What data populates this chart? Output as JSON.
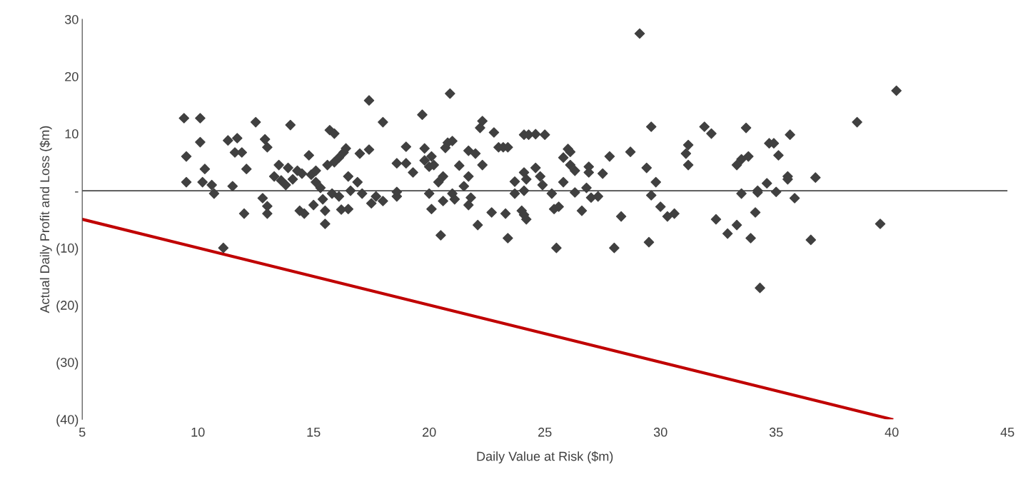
{
  "chart_data": {
    "type": "scatter",
    "xlabel": "Daily Value at Risk ($m)",
    "ylabel": "Actual Daily Profit and Loss ($m)",
    "xlim": [
      5,
      45
    ],
    "xticks": [
      5,
      10,
      15,
      20,
      25,
      30,
      35,
      40,
      45
    ],
    "ylim": [
      -40,
      30
    ],
    "yticks": [
      {
        "value": -40,
        "label": "(40)"
      },
      {
        "value": -30,
        "label": "(30)"
      },
      {
        "value": -20,
        "label": "(20)"
      },
      {
        "value": -10,
        "label": "(10)"
      },
      {
        "value": 0,
        "label": "-"
      },
      {
        "value": 10,
        "label": "10"
      },
      {
        "value": 20,
        "label": "20"
      },
      {
        "value": 30,
        "label": "30"
      }
    ],
    "grid": false,
    "marker": "diamond",
    "ref_lines": [
      {
        "axis": "y",
        "value": 0,
        "color": "#000000",
        "line_style": "solid"
      }
    ],
    "series": [
      {
        "color": "#404040",
        "x": [
          9.4,
          10.1,
          9.5,
          10.1,
          10.3,
          9.5,
          10.2,
          10.6,
          10.7,
          11.1,
          11.3,
          11.7,
          11.6,
          11.5,
          11.9,
          12.1,
          12.0,
          12.5,
          12.9,
          13.0,
          12.8,
          13.0,
          13.0,
          13.3,
          13.5,
          13.6,
          13.9,
          14.0,
          14.1,
          13.8,
          14.3,
          14.5,
          14.6,
          14.4,
          14.8,
          14.9,
          15.1,
          15.1,
          15.0,
          15.3,
          15.4,
          15.5,
          15.5,
          15.7,
          15.9,
          15.6,
          15.9,
          16.1,
          16.3,
          16.4,
          15.8,
          16.1,
          16.2,
          16.5,
          16.5,
          16.6,
          16.9,
          17.1,
          17.0,
          17.4,
          17.4,
          17.5,
          17.7,
          18.0,
          18.0,
          18.6,
          18.6,
          18.6,
          19.0,
          19.0,
          19.3,
          19.7,
          19.8,
          19.8,
          20.0,
          20.0,
          20.9,
          20.1,
          20.1,
          20.2,
          20.4,
          20.6,
          20.5,
          20.6,
          20.7,
          20.8,
          21.0,
          21.0,
          21.1,
          21.3,
          21.5,
          21.7,
          21.7,
          21.7,
          21.8,
          22.0,
          22.1,
          22.2,
          22.3,
          22.3,
          22.7,
          22.8,
          23.0,
          23.2,
          23.4,
          23.3,
          23.4,
          23.7,
          23.7,
          24.0,
          24.1,
          24.1,
          24.1,
          24.2,
          24.1,
          24.3,
          24.6,
          25.0,
          24.2,
          24.6,
          24.8,
          24.9,
          25.4,
          25.3,
          25.8,
          25.5,
          26.0,
          26.1,
          25.6,
          25.8,
          26.1,
          26.3,
          26.3,
          26.6,
          26.8,
          26.9,
          26.9,
          27.0,
          27.3,
          27.5,
          27.8,
          28.0,
          28.3,
          28.7,
          29.1,
          29.4,
          29.5,
          29.6,
          29.6,
          29.8,
          30.0,
          30.3,
          30.6,
          31.1,
          31.2,
          31.2,
          31.9,
          32.2,
          32.4,
          32.9,
          33.3,
          33.3,
          33.5,
          33.8,
          33.5,
          33.7,
          33.9,
          34.1,
          34.2,
          34.2,
          34.3,
          34.6,
          34.7,
          34.9,
          35.0,
          35.1,
          35.5,
          35.5,
          35.6,
          35.8,
          36.7,
          36.5,
          38.5,
          39.5,
          40.2
        ],
        "values": [
          12.7,
          12.7,
          6,
          8.5,
          3.8,
          1.5,
          1.5,
          1,
          -0.5,
          -10,
          8.8,
          9.2,
          6.7,
          0.8,
          6.7,
          3.8,
          -4,
          12,
          9,
          7.6,
          -1.3,
          -2.7,
          -4,
          2.5,
          4.5,
          1.8,
          4,
          11.5,
          2,
          1,
          3.5,
          3,
          -4,
          -3.5,
          6.2,
          2.8,
          3.5,
          1.5,
          -2.5,
          0.5,
          -1.5,
          -5.8,
          -3.5,
          10.6,
          10,
          4.5,
          5,
          5.8,
          6.7,
          7.4,
          -0.5,
          -1,
          -3.3,
          -3.2,
          2.5,
          0,
          1.5,
          -0.5,
          6.5,
          7.2,
          15.8,
          -2.2,
          -1,
          12,
          -1.8,
          4.8,
          -1,
          -0.2,
          4.8,
          7.7,
          3.2,
          13.3,
          5.3,
          7.4,
          4.2,
          -0.5,
          17,
          6,
          -3.2,
          4.5,
          1.5,
          -1.8,
          -7.8,
          2.5,
          7.5,
          8.4,
          8.7,
          -0.5,
          -1.5,
          4.4,
          0.8,
          2.5,
          -2.5,
          7,
          -1.2,
          6.5,
          -6,
          11,
          12.2,
          4.5,
          -3.8,
          10.2,
          7.6,
          7.6,
          7.6,
          -4,
          -8.3,
          -0.5,
          1.6,
          -3.5,
          3.2,
          0,
          -4.2,
          -5,
          9.8,
          9.8,
          9.9,
          9.8,
          2,
          4,
          2.5,
          1,
          -3.2,
          -0.5,
          5.8,
          -10,
          7.3,
          4.5,
          -2.8,
          1.5,
          6.8,
          3.5,
          -0.3,
          -3.5,
          0.5,
          3.2,
          4.2,
          -1.2,
          -1,
          3,
          6,
          -10,
          -4.5,
          6.8,
          27.5,
          4,
          -9,
          11.2,
          -0.8,
          1.5,
          -2.8,
          -4.5,
          -4,
          6.5,
          8,
          4.5,
          11.2,
          10,
          -5,
          -7.5,
          -6,
          4.5,
          5.5,
          6,
          -0.5,
          11,
          -8.3,
          -3.8,
          -0.3,
          0,
          -17,
          1.3,
          8.3,
          8.3,
          -0.2,
          6.2,
          2.5,
          2,
          9.8,
          -1.3,
          2.3,
          -8.6,
          12,
          -5.8,
          17.5
        ]
      },
      {
        "type": "line",
        "color": "#c00000",
        "x": [
          5,
          40
        ],
        "values": [
          -5,
          -40
        ],
        "line_style": "solid",
        "marker": "none"
      }
    ]
  }
}
